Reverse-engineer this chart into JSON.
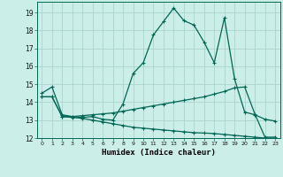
{
  "title": "",
  "xlabel": "Humidex (Indice chaleur)",
  "ylabel": "",
  "background_color": "#cceee8",
  "grid_color": "#aad4cc",
  "line_color": "#006655",
  "xlim": [
    -0.5,
    23.5
  ],
  "ylim": [
    12,
    19.6
  ],
  "yticks": [
    12,
    13,
    14,
    15,
    16,
    17,
    18,
    19
  ],
  "xticks": [
    0,
    1,
    2,
    3,
    4,
    5,
    6,
    7,
    8,
    9,
    10,
    11,
    12,
    13,
    14,
    15,
    16,
    17,
    18,
    19,
    20,
    21,
    22,
    23
  ],
  "curve1_x": [
    0,
    1,
    2,
    3,
    4,
    5,
    6,
    7,
    8,
    9,
    10,
    11,
    12,
    13,
    14,
    15,
    16,
    17,
    18,
    19,
    20,
    21,
    22,
    23
  ],
  "curve1_y": [
    14.5,
    14.85,
    13.3,
    13.2,
    13.15,
    13.2,
    13.05,
    13.0,
    13.9,
    15.6,
    16.2,
    17.75,
    18.5,
    19.25,
    18.55,
    18.3,
    17.35,
    16.2,
    18.7,
    15.3,
    13.45,
    13.3,
    13.05,
    12.95
  ],
  "curve2_x": [
    0,
    1,
    2,
    3,
    4,
    5,
    6,
    7,
    8,
    9,
    10,
    11,
    12,
    13,
    14,
    15,
    16,
    17,
    18,
    19,
    20,
    21,
    22,
    23
  ],
  "curve2_y": [
    14.3,
    14.3,
    13.2,
    13.2,
    13.25,
    13.3,
    13.35,
    13.4,
    13.5,
    13.6,
    13.7,
    13.8,
    13.9,
    14.0,
    14.1,
    14.2,
    14.3,
    14.45,
    14.6,
    14.8,
    14.85,
    13.35,
    12.05,
    12.05
  ],
  "curve3_x": [
    0,
    1,
    2,
    3,
    4,
    5,
    6,
    7,
    8,
    9,
    10,
    11,
    12,
    13,
    14,
    15,
    16,
    17,
    18,
    19,
    20,
    21,
    22,
    23
  ],
  "curve3_y": [
    14.3,
    14.3,
    13.2,
    13.15,
    13.1,
    13.0,
    12.9,
    12.8,
    12.7,
    12.6,
    12.55,
    12.5,
    12.45,
    12.4,
    12.35,
    12.3,
    12.28,
    12.25,
    12.2,
    12.15,
    12.1,
    12.05,
    12.0,
    12.0
  ]
}
